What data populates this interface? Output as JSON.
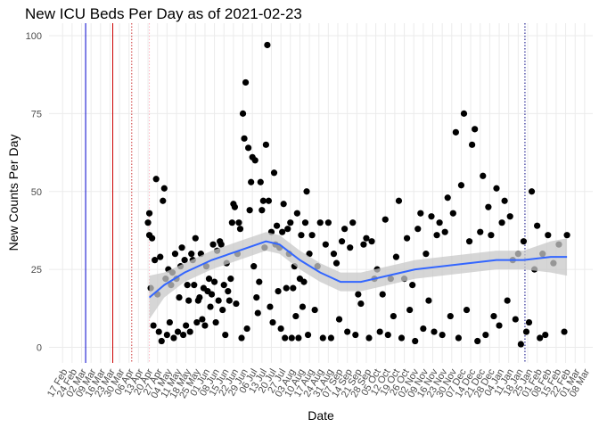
{
  "chart_data": {
    "type": "scatter",
    "title": "New ICU Beds Per Day as of 2021-02-23",
    "x_label": "Date",
    "y_label": "New Counts Per Day",
    "color": "#000000",
    "x": [
      63,
      64,
      64,
      65,
      66,
      67,
      68,
      69,
      70,
      71,
      72,
      73,
      74,
      75,
      76,
      77,
      78,
      79,
      80,
      81,
      82,
      83,
      84,
      85,
      86,
      87,
      88,
      89,
      90,
      91,
      92,
      93,
      94,
      95,
      96,
      97,
      98,
      99,
      100,
      101,
      102,
      103,
      104,
      105,
      106,
      107,
      108,
      109,
      110,
      111,
      112,
      113,
      114,
      115,
      116,
      117,
      118,
      119,
      120,
      121,
      122,
      123,
      124,
      125,
      126,
      127,
      128,
      129,
      130,
      131,
      132,
      133,
      134,
      135,
      136,
      137,
      138,
      139,
      140,
      141,
      142,
      143,
      144,
      145,
      146,
      147,
      148,
      149,
      150,
      151,
      152,
      153,
      154,
      155,
      156,
      157,
      158,
      159,
      160,
      161,
      162,
      163,
      164,
      165,
      166,
      167,
      168,
      169,
      170,
      171,
      172,
      173,
      174,
      175,
      176,
      177,
      178,
      179,
      180,
      181,
      182,
      184,
      186,
      188,
      190,
      192,
      194,
      196,
      198,
      200,
      202,
      204,
      206,
      208,
      210,
      212,
      214,
      216,
      218,
      220,
      222,
      224,
      226,
      228,
      230,
      232,
      234,
      236,
      238,
      240,
      242,
      244,
      246,
      248,
      250,
      252,
      254,
      256,
      258,
      260,
      262,
      264,
      266,
      268,
      270,
      272,
      274,
      276,
      278,
      280,
      282,
      284,
      286,
      288,
      290,
      292,
      294,
      296,
      298,
      300,
      302,
      304,
      306,
      308,
      310,
      312,
      314,
      316,
      318,
      320,
      322,
      324,
      326,
      328,
      330,
      332,
      334,
      336,
      338,
      340,
      342,
      344,
      346,
      348,
      350,
      352,
      354,
      356,
      358,
      362,
      366,
      370,
      372
    ],
    "values": [
      40,
      43,
      36,
      19,
      35,
      7,
      28,
      54,
      17,
      5,
      29,
      2,
      47,
      51,
      22,
      4,
      25,
      8,
      20,
      24,
      3,
      30,
      22,
      5,
      16,
      26,
      32,
      4,
      28,
      7,
      20,
      15,
      5,
      30,
      28,
      20,
      35,
      8,
      15,
      16,
      30,
      9,
      19,
      7,
      26,
      18,
      22,
      13,
      17,
      33,
      21,
      8,
      31,
      15,
      34,
      33,
      12,
      20,
      4,
      27,
      18,
      15,
      22,
      40,
      46,
      45,
      14,
      30,
      40,
      38,
      3,
      75,
      67,
      85,
      6,
      64,
      44,
      53,
      61,
      26,
      60,
      16,
      11,
      21,
      53,
      44,
      47,
      32,
      65,
      97,
      47,
      13,
      37,
      8,
      56,
      33,
      39,
      18,
      32,
      6,
      37,
      46,
      3,
      19,
      38,
      30,
      40,
      3,
      19,
      26,
      10,
      43,
      3,
      22,
      36,
      13,
      21,
      40,
      50,
      4,
      30,
      36,
      12,
      26,
      40,
      3,
      33,
      40,
      3,
      30,
      27,
      9,
      34,
      38,
      5,
      32,
      40,
      4,
      17,
      14,
      33,
      35,
      3,
      34,
      22,
      25,
      5,
      17,
      41,
      4,
      22,
      10,
      29,
      47,
      3,
      22,
      35,
      12,
      20,
      2,
      38,
      43,
      6,
      30,
      15,
      42,
      5,
      36,
      40,
      4,
      37,
      48,
      10,
      43,
      69,
      3,
      52,
      75,
      12,
      34,
      65,
      70,
      2,
      37,
      55,
      4,
      45,
      36,
      10,
      51,
      7,
      40,
      47,
      15,
      42,
      28,
      9,
      30,
      1,
      34,
      5,
      8,
      50,
      25,
      39,
      3,
      30,
      4,
      36,
      27,
      33,
      5,
      36
    ],
    "smooth": {
      "color": "#3366ff",
      "band_color": "#c8c8c8",
      "x": [
        64,
        75,
        90,
        110,
        130,
        150,
        160,
        175,
        190,
        205,
        220,
        240,
        260,
        280,
        300,
        320,
        340,
        360,
        372
      ],
      "values": [
        16,
        20,
        24,
        28,
        31,
        34,
        33,
        28,
        24,
        21,
        21,
        23,
        25,
        26,
        27,
        28,
        28,
        29,
        29
      ],
      "lower": [
        9,
        16,
        21,
        25,
        28,
        31,
        30,
        25,
        21,
        18,
        18,
        20,
        22,
        23,
        24,
        25,
        25,
        24,
        23
      ],
      "upper": [
        23,
        24,
        27,
        31,
        34,
        37,
        36,
        31,
        27,
        24,
        24,
        26,
        28,
        29,
        30,
        31,
        31,
        34,
        35
      ]
    },
    "vlines": [
      {
        "x": 17,
        "color": "#0000cc",
        "dash": false
      },
      {
        "x": 37,
        "color": "#cc0000",
        "dash": false
      },
      {
        "x": 51,
        "color": "#cc3333",
        "dash": true
      },
      {
        "x": 64,
        "color": "#ffb6c1",
        "dash": true
      },
      {
        "x": 341,
        "color": "#000080",
        "dash": true
      }
    ],
    "xlim": [
      -10,
      391
    ],
    "ylim": [
      -5,
      104
    ],
    "yticks": [
      0,
      25,
      50,
      75,
      100
    ],
    "xticks": [
      {
        "value": 0,
        "label": "17 Feb"
      },
      {
        "value": 7,
        "label": "24 Feb"
      },
      {
        "value": 14,
        "label": "02 Mar"
      },
      {
        "value": 21,
        "label": "09 Mar"
      },
      {
        "value": 28,
        "label": "16 Mar"
      },
      {
        "value": 35,
        "label": "23 Mar"
      },
      {
        "value": 42,
        "label": "30 Mar"
      },
      {
        "value": 49,
        "label": "06 Apr"
      },
      {
        "value": 56,
        "label": "13 Apr"
      },
      {
        "value": 63,
        "label": "20 Apr"
      },
      {
        "value": 70,
        "label": "27 Apr"
      },
      {
        "value": 77,
        "label": "04 May"
      },
      {
        "value": 84,
        "label": "11 May"
      },
      {
        "value": 91,
        "label": "18 May"
      },
      {
        "value": 98,
        "label": "25 May"
      },
      {
        "value": 105,
        "label": "01 Jun"
      },
      {
        "value": 112,
        "label": "08 Jun"
      },
      {
        "value": 119,
        "label": "15 Jun"
      },
      {
        "value": 126,
        "label": "22 Jun"
      },
      {
        "value": 133,
        "label": "29 Jun"
      },
      {
        "value": 140,
        "label": "06 Jul"
      },
      {
        "value": 147,
        "label": "13 Jul"
      },
      {
        "value": 154,
        "label": "20 Jul"
      },
      {
        "value": 161,
        "label": "27 Jul"
      },
      {
        "value": 168,
        "label": "03 Aug"
      },
      {
        "value": 175,
        "label": "10 Aug"
      },
      {
        "value": 182,
        "label": "17 Aug"
      },
      {
        "value": 189,
        "label": "24 Aug"
      },
      {
        "value": 196,
        "label": "31 Aug"
      },
      {
        "value": 203,
        "label": "07 Sep"
      },
      {
        "value": 210,
        "label": "14 Sep"
      },
      {
        "value": 217,
        "label": "21 Sep"
      },
      {
        "value": 224,
        "label": "28 Sep"
      },
      {
        "value": 231,
        "label": "05 Oct"
      },
      {
        "value": 238,
        "label": "12 Oct"
      },
      {
        "value": 245,
        "label": "19 Oct"
      },
      {
        "value": 252,
        "label": "26 Oct"
      },
      {
        "value": 259,
        "label": "02 Nov"
      },
      {
        "value": 266,
        "label": "09 Nov"
      },
      {
        "value": 273,
        "label": "16 Nov"
      },
      {
        "value": 280,
        "label": "23 Nov"
      },
      {
        "value": 287,
        "label": "30 Nov"
      },
      {
        "value": 294,
        "label": "07 Dec"
      },
      {
        "value": 301,
        "label": "14 Dec"
      },
      {
        "value": 308,
        "label": "21 Dec"
      },
      {
        "value": 315,
        "label": "28 Dec"
      },
      {
        "value": 322,
        "label": "04 Jan"
      },
      {
        "value": 329,
        "label": "11 Jan"
      },
      {
        "value": 336,
        "label": "18 Jan"
      },
      {
        "value": 343,
        "label": "25 Jan"
      },
      {
        "value": 350,
        "label": "01 Feb"
      },
      {
        "value": 357,
        "label": "08 Feb"
      },
      {
        "value": 364,
        "label": "15 Feb"
      },
      {
        "value": 371,
        "label": "22 Feb"
      },
      {
        "value": 378,
        "label": "01 Mar"
      },
      {
        "value": 385,
        "label": "08 Mar"
      }
    ],
    "grid": true
  }
}
